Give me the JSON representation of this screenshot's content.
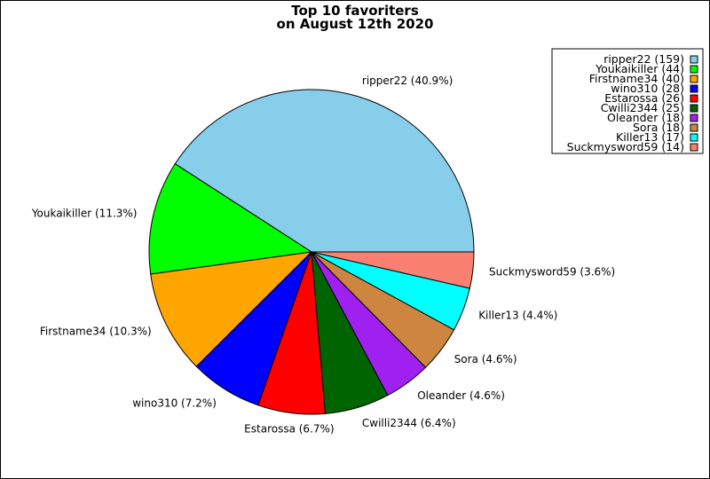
{
  "chart_data": {
    "type": "pie",
    "title": [
      "Top 10 favoriters",
      "on August 12th 2020"
    ],
    "legend_placement": "top-right",
    "slices": [
      {
        "name": "ripper22",
        "value": 159,
        "pct_label": "ripper22 (40.9%)",
        "legend": "ripper22 (159)",
        "color": "#87ceeb"
      },
      {
        "name": "Youkaikiller",
        "value": 44,
        "pct_label": "Youkaikiller (11.3%)",
        "legend": "Youkaikiller (44)",
        "color": "#00ff00"
      },
      {
        "name": "Firstname34",
        "value": 40,
        "pct_label": "Firstname34 (10.3%)",
        "legend": "Firstname34 (40)",
        "color": "#ffa500"
      },
      {
        "name": "wino310",
        "value": 28,
        "pct_label": "wino310 (7.2%)",
        "legend": "wino310 (28)",
        "color": "#0000ff"
      },
      {
        "name": "Estarossa",
        "value": 26,
        "pct_label": "Estarossa (6.7%)",
        "legend": "Estarossa (26)",
        "color": "#ff0000"
      },
      {
        "name": "Cwilli2344",
        "value": 25,
        "pct_label": "Cwilli2344 (6.4%)",
        "legend": "Cwilli2344 (25)",
        "color": "#006400"
      },
      {
        "name": "Oleander",
        "value": 18,
        "pct_label": "Oleander (4.6%)",
        "legend": "Oleander (18)",
        "color": "#a020f0"
      },
      {
        "name": "Sora",
        "value": 18,
        "pct_label": "Sora (4.6%)",
        "legend": "Sora (18)",
        "color": "#cd853f"
      },
      {
        "name": "Killer13",
        "value": 17,
        "pct_label": "Killer13 (4.4%)",
        "legend": "Killer13 (17)",
        "color": "#00ffff"
      },
      {
        "name": "Suckmysword59",
        "value": 14,
        "pct_label": "Suckmysword59 (3.6%)",
        "legend": "Suckmysword59 (14)",
        "color": "#fa8072"
      }
    ]
  }
}
